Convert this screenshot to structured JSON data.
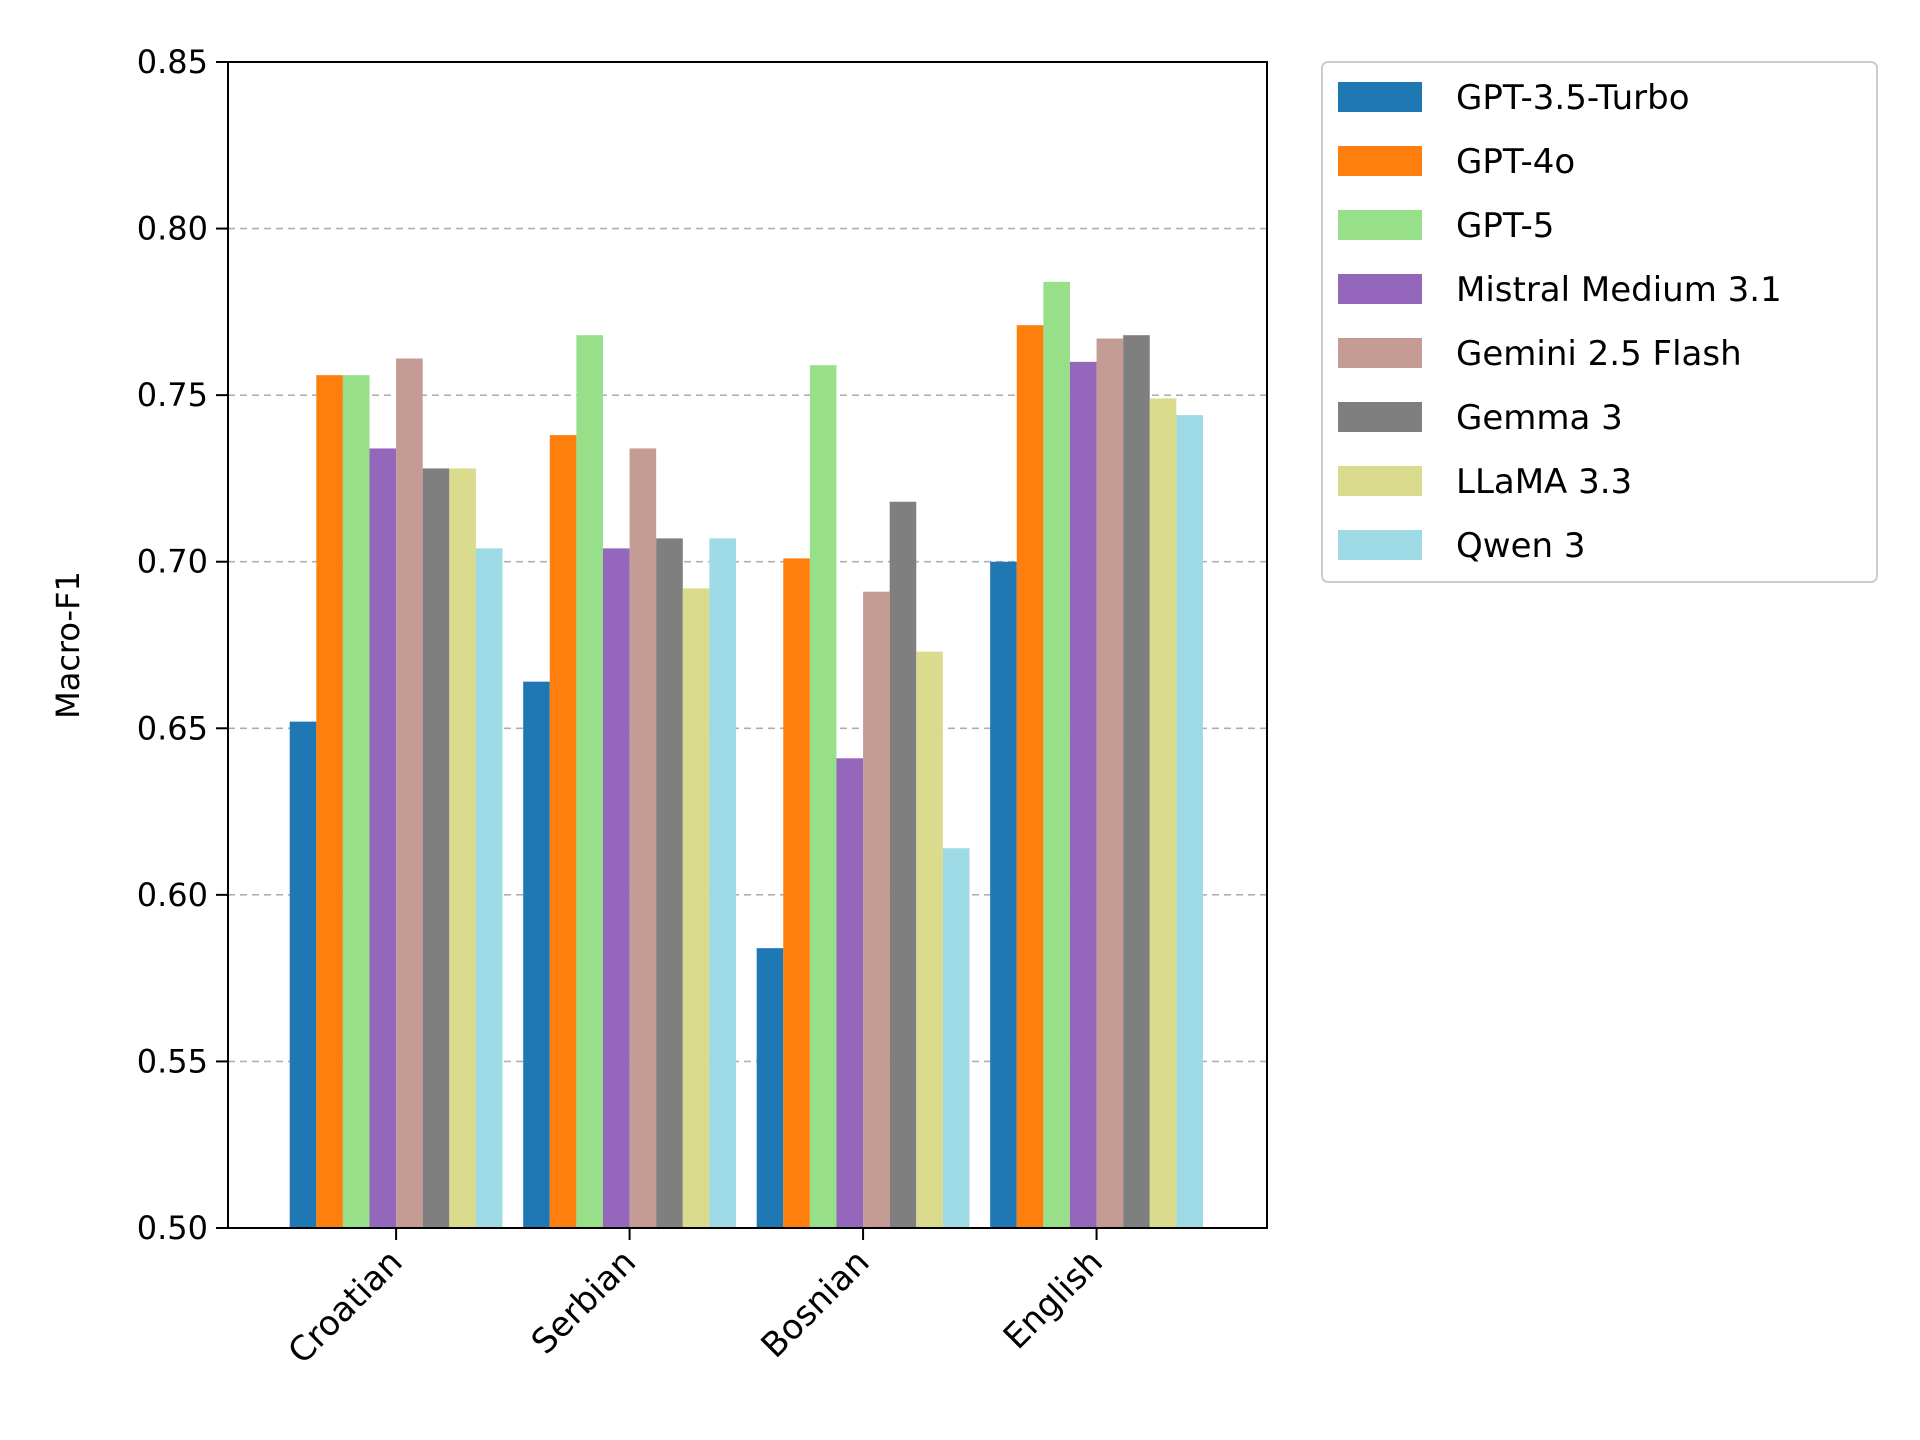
{
  "chart_data": {
    "type": "bar",
    "title": "",
    "xlabel": "",
    "ylabel": "Macro-F1",
    "ylim": [
      0.5,
      0.85
    ],
    "yticks": [
      "0.50",
      "0.55",
      "0.60",
      "0.65",
      "0.70",
      "0.75",
      "0.80",
      "0.85"
    ],
    "grid": "horizontal dashed",
    "legend_position": "outside top-right",
    "categories": [
      "Croatian",
      "Serbian",
      "Bosnian",
      "English"
    ],
    "series": [
      {
        "name": "GPT-3.5-Turbo",
        "color": "#1f77b4",
        "values": [
          0.652,
          0.664,
          0.584,
          0.7
        ]
      },
      {
        "name": "GPT-4o",
        "color": "#ff7f0e",
        "values": [
          0.756,
          0.738,
          0.701,
          0.771
        ]
      },
      {
        "name": "GPT-5",
        "color": "#98df8a",
        "values": [
          0.756,
          0.768,
          0.759,
          0.784
        ]
      },
      {
        "name": "Mistral Medium 3.1",
        "color": "#9467bd",
        "values": [
          0.734,
          0.704,
          0.641,
          0.76
        ]
      },
      {
        "name": "Gemini 2.5 Flash",
        "color": "#c49c94",
        "values": [
          0.761,
          0.734,
          0.691,
          0.767
        ]
      },
      {
        "name": "Gemma 3",
        "color": "#7f7f7f",
        "values": [
          0.728,
          0.707,
          0.718,
          0.768
        ]
      },
      {
        "name": "LLaMA 3.3",
        "color": "#dbdb8d",
        "values": [
          0.728,
          0.692,
          0.673,
          0.749
        ]
      },
      {
        "name": "Qwen 3",
        "color": "#9edae5",
        "values": [
          0.704,
          0.707,
          0.614,
          0.744
        ]
      }
    ]
  }
}
